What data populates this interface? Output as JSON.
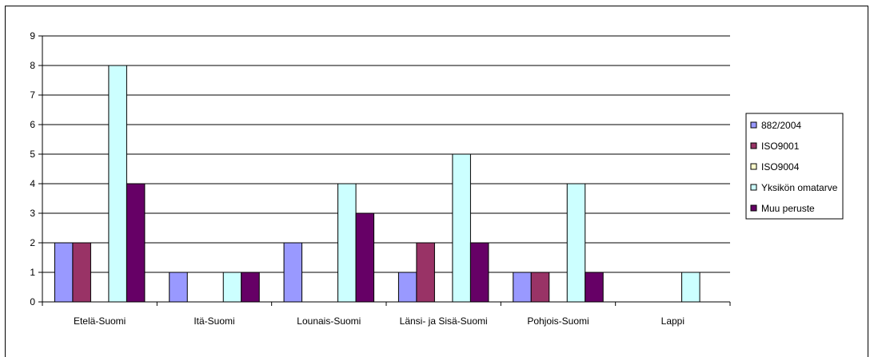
{
  "chart_data": {
    "type": "bar",
    "categories": [
      "Etelä-Suomi",
      "Itä-Suomi",
      "Lounais-Suomi",
      "Länsi- ja Sisä-Suomi",
      "Pohjois-Suomi",
      "Lappi"
    ],
    "series": [
      {
        "name": "882/2004",
        "color": "#9999ff",
        "values": [
          2,
          1,
          2,
          1,
          1,
          0
        ]
      },
      {
        "name": "ISO9001",
        "color": "#993366",
        "values": [
          2,
          0,
          0,
          2,
          1,
          0
        ]
      },
      {
        "name": "ISO9004",
        "color": "#ffffcc",
        "values": [
          0,
          0,
          0,
          0,
          0,
          0
        ]
      },
      {
        "name": "Yksikön omatarve",
        "color": "#ccffff",
        "values": [
          8,
          1,
          4,
          5,
          4,
          1
        ]
      },
      {
        "name": "Muu peruste",
        "color": "#660066",
        "values": [
          4,
          1,
          3,
          2,
          1,
          0
        ]
      }
    ],
    "yticks": [
      "0",
      "1",
      "2",
      "3",
      "4",
      "5",
      "6",
      "7",
      "8",
      "9"
    ],
    "ylim": [
      0,
      9
    ],
    "title": "",
    "xlabel": "",
    "ylabel": "",
    "grid": true,
    "legend_position": "right"
  }
}
